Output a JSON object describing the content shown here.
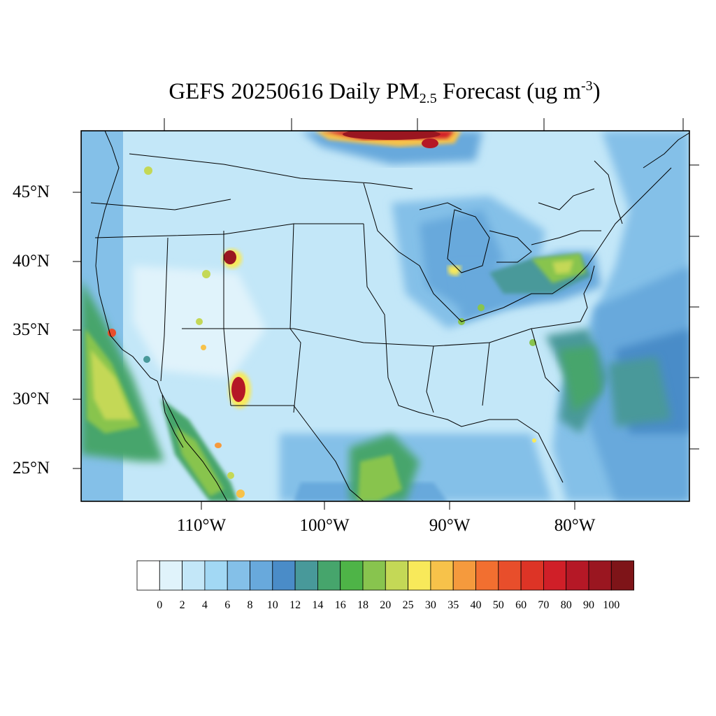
{
  "title": {
    "main": "GEFS 20250616 Daily PM",
    "subscript": "2.5",
    "rest": " Forecast (ug m",
    "superscript": "-3",
    "close": ")"
  },
  "lat_labels": [
    "45°N",
    "40°N",
    "35°N",
    "30°N",
    "25°N"
  ],
  "lon_labels": [
    "110°W",
    "100°W",
    "90°W",
    "80°W"
  ],
  "colorbar": {
    "labels": [
      "0",
      "2",
      "4",
      "6",
      "8",
      "10",
      "12",
      "14",
      "16",
      "18",
      "20",
      "25",
      "30",
      "35",
      "40",
      "50",
      "60",
      "70",
      "80",
      "90",
      "100"
    ],
    "colors": [
      "#ffffff",
      "#e0f3fb",
      "#c3e7f8",
      "#a2d8f4",
      "#84c0e8",
      "#68a9dc",
      "#4a8cc8",
      "#48999a",
      "#46a56c",
      "#4eb447",
      "#88c44e",
      "#c4d856",
      "#f8e95a",
      "#f7c24a",
      "#f59a3d",
      "#f26f30",
      "#e84e2b",
      "#dd3426",
      "#d01f28",
      "#b51826",
      "#9a1620",
      "#7e1418"
    ]
  },
  "palette": {
    "background_field": "#c3e7f8",
    "ocean": "#84c0e8",
    "boundary": "#000000"
  }
}
